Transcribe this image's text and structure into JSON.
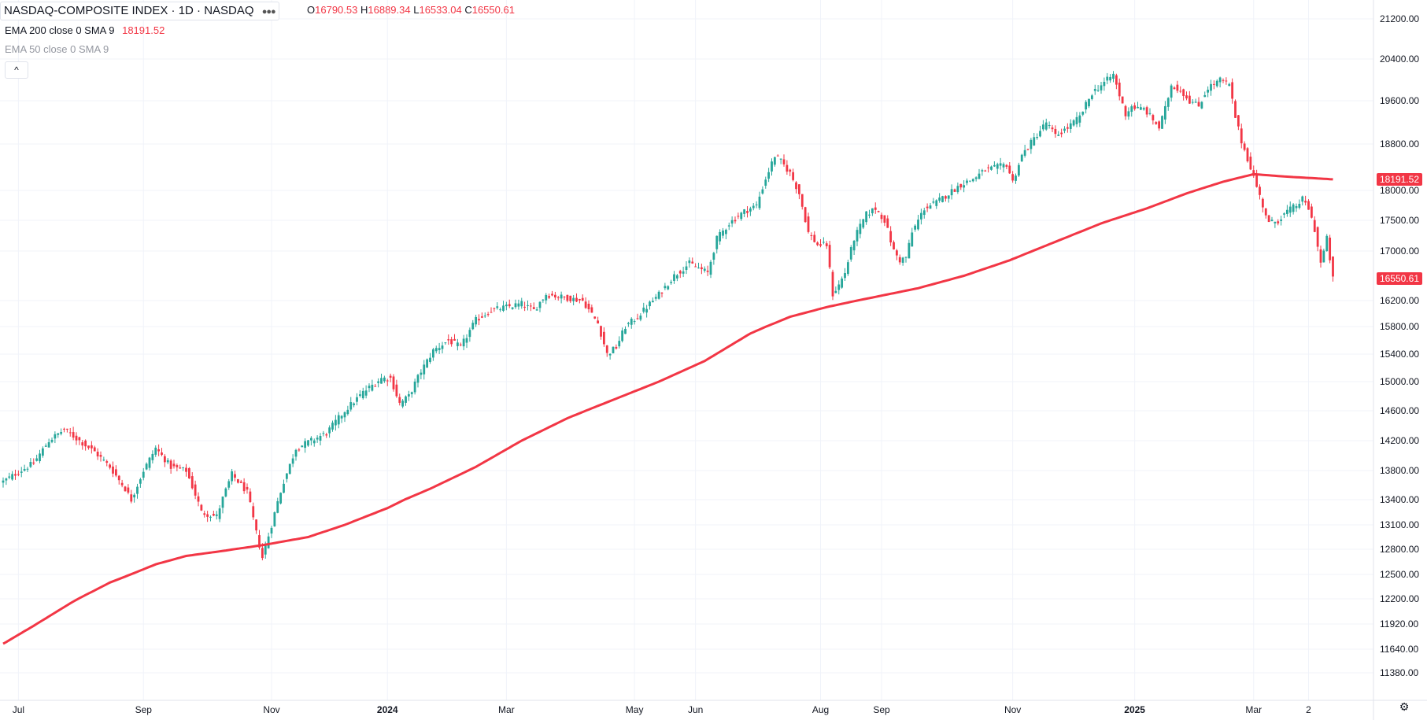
{
  "header": {
    "title": "NASDAQ-COMPOSITE INDEX · 1D · NASDAQ",
    "ohlc": {
      "o_label": "O",
      "o_value": "16790.53",
      "h_label": "H",
      "h_value": "16889.34",
      "l_label": "L",
      "l_value": "16533.04",
      "c_label": "C",
      "c_value": "16550.61"
    },
    "indicator1": "EMA 200 close 0 SMA 9",
    "indicator1_value": "18191.52",
    "indicator2": "EMA 50 close 0 SMA 9",
    "collapse_symbol": "^",
    "settings_symbol": "⚙"
  },
  "colors": {
    "up": "#26a69a",
    "down": "#f23645",
    "ema": "#f23645",
    "grid": "#f0f3fa",
    "text": "#131722",
    "muted": "#9598a1"
  },
  "chart_data": {
    "type": "candlestick",
    "title": "NASDAQ-COMPOSITE INDEX · 1D · NASDAQ",
    "y_ticks": [
      11380,
      11640,
      11920,
      12200,
      12500,
      12800,
      13100,
      13400,
      13800,
      14200,
      14600,
      15000,
      15400,
      15800,
      16200,
      17000,
      17500,
      18000,
      18800,
      19600,
      20400,
      21200
    ],
    "x_labels": [
      {
        "label": "Jul",
        "i": 5
      },
      {
        "label": "Sep",
        "i": 46
      },
      {
        "label": "Nov",
        "i": 88
      },
      {
        "label": "2024",
        "i": 126
      },
      {
        "label": "Mar",
        "i": 165
      },
      {
        "label": "May",
        "i": 207
      },
      {
        "label": "Jun",
        "i": 227
      },
      {
        "label": "Aug",
        "i": 268
      },
      {
        "label": "Sep",
        "i": 288
      },
      {
        "label": "Nov",
        "i": 331
      },
      {
        "label": "2025",
        "i": 371
      },
      {
        "label": "Mar",
        "i": 410
      },
      {
        "label": "2",
        "i": 428
      }
    ],
    "total_bars": 440,
    "last_price": 16550.61,
    "last_price_label": "16550.61",
    "ema200_last": 18191.52,
    "ema200_label": "18191.52",
    "series": [
      {
        "name": "NASDAQ Composite",
        "anchors": [
          [
            0,
            13650
          ],
          [
            5,
            13780
          ],
          [
            10,
            13900
          ],
          [
            15,
            14200
          ],
          [
            20,
            14350
          ],
          [
            25,
            14200
          ],
          [
            30,
            14050
          ],
          [
            35,
            13850
          ],
          [
            40,
            13550
          ],
          [
            42,
            13400
          ],
          [
            46,
            13800
          ],
          [
            50,
            14100
          ],
          [
            55,
            13850
          ],
          [
            60,
            13800
          ],
          [
            65,
            13250
          ],
          [
            70,
            13200
          ],
          [
            75,
            13750
          ],
          [
            80,
            13500
          ],
          [
            83,
            13000
          ],
          [
            85,
            12700
          ],
          [
            88,
            13100
          ],
          [
            92,
            13650
          ],
          [
            96,
            14100
          ],
          [
            100,
            14180
          ],
          [
            106,
            14300
          ],
          [
            112,
            14600
          ],
          [
            118,
            14850
          ],
          [
            124,
            15050
          ],
          [
            127,
            15050
          ],
          [
            130,
            14700
          ],
          [
            133,
            14800
          ],
          [
            137,
            15150
          ],
          [
            141,
            15450
          ],
          [
            146,
            15600
          ],
          [
            150,
            15500
          ],
          [
            155,
            15900
          ],
          [
            160,
            16050
          ],
          [
            165,
            16100
          ],
          [
            170,
            16150
          ],
          [
            174,
            16050
          ],
          [
            178,
            16300
          ],
          [
            184,
            16250
          ],
          [
            190,
            16200
          ],
          [
            195,
            15850
          ],
          [
            198,
            15400
          ],
          [
            201,
            15500
          ],
          [
            204,
            15800
          ],
          [
            208,
            15950
          ],
          [
            211,
            16100
          ],
          [
            215,
            16300
          ],
          [
            220,
            16600
          ],
          [
            225,
            16800
          ],
          [
            229,
            16700
          ],
          [
            231,
            16650
          ],
          [
            234,
            17200
          ],
          [
            238,
            17450
          ],
          [
            243,
            17650
          ],
          [
            247,
            17750
          ],
          [
            250,
            18200
          ],
          [
            253,
            18600
          ],
          [
            255,
            18500
          ],
          [
            258,
            18300
          ],
          [
            261,
            17950
          ],
          [
            264,
            17300
          ],
          [
            267,
            17100
          ],
          [
            270,
            17100
          ],
          [
            272,
            16300
          ],
          [
            274,
            16450
          ],
          [
            276,
            16650
          ],
          [
            279,
            17200
          ],
          [
            283,
            17600
          ],
          [
            286,
            17700
          ],
          [
            289,
            17500
          ],
          [
            292,
            17000
          ],
          [
            294,
            16850
          ],
          [
            296,
            16900
          ],
          [
            298,
            17300
          ],
          [
            302,
            17700
          ],
          [
            306,
            17800
          ],
          [
            310,
            17950
          ],
          [
            314,
            18100
          ],
          [
            318,
            18200
          ],
          [
            322,
            18350
          ],
          [
            326,
            18400
          ],
          [
            329,
            18450
          ],
          [
            331,
            18150
          ],
          [
            334,
            18600
          ],
          [
            338,
            18900
          ],
          [
            342,
            19200
          ],
          [
            345,
            18950
          ],
          [
            349,
            19100
          ],
          [
            353,
            19300
          ],
          [
            357,
            19750
          ],
          [
            360,
            19900
          ],
          [
            364,
            20100
          ],
          [
            366,
            19700
          ],
          [
            368,
            19350
          ],
          [
            370,
            19500
          ],
          [
            372,
            19450
          ],
          [
            374,
            19450
          ],
          [
            377,
            19250
          ],
          [
            379,
            19100
          ],
          [
            381,
            19450
          ],
          [
            383,
            19900
          ],
          [
            386,
            19800
          ],
          [
            389,
            19600
          ],
          [
            392,
            19500
          ],
          [
            395,
            19850
          ],
          [
            399,
            20000
          ],
          [
            402,
            19900
          ],
          [
            404,
            19300
          ],
          [
            406,
            18850
          ],
          [
            409,
            18400
          ],
          [
            412,
            17900
          ],
          [
            415,
            17450
          ],
          [
            418,
            17500
          ],
          [
            421,
            17650
          ],
          [
            424,
            17750
          ],
          [
            426,
            17850
          ],
          [
            428,
            17700
          ],
          [
            430,
            17350
          ],
          [
            432,
            16800
          ],
          [
            434,
            17200
          ],
          [
            436,
            16550
          ]
        ]
      },
      {
        "name": "EMA 200",
        "anchors": [
          [
            0,
            11700
          ],
          [
            10,
            11900
          ],
          [
            22,
            12150
          ],
          [
            35,
            12400
          ],
          [
            50,
            12620
          ],
          [
            60,
            12720
          ],
          [
            72,
            12780
          ],
          [
            85,
            12850
          ],
          [
            100,
            12950
          ],
          [
            112,
            13100
          ],
          [
            126,
            13300
          ],
          [
            140,
            13550
          ],
          [
            155,
            13850
          ],
          [
            170,
            14200
          ],
          [
            185,
            14500
          ],
          [
            200,
            14750
          ],
          [
            215,
            15000
          ],
          [
            230,
            15300
          ],
          [
            245,
            15700
          ],
          [
            258,
            15950
          ],
          [
            270,
            16100
          ],
          [
            285,
            16250
          ],
          [
            300,
            16400
          ],
          [
            315,
            16600
          ],
          [
            330,
            16850
          ],
          [
            345,
            17150
          ],
          [
            360,
            17450
          ],
          [
            375,
            17700
          ],
          [
            388,
            17950
          ],
          [
            400,
            18150
          ],
          [
            410,
            18280
          ],
          [
            420,
            18240
          ],
          [
            436,
            18191.52
          ]
        ]
      }
    ]
  }
}
